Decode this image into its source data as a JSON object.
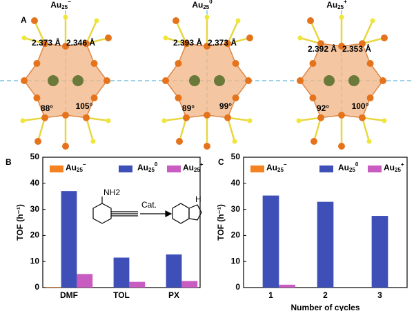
{
  "panel_a": {
    "label": "A",
    "clusters": [
      {
        "title": "Au25−",
        "distances": [
          "2.373 Å",
          "2.346 Å"
        ],
        "angles": [
          "88°",
          "105°"
        ]
      },
      {
        "title": "Au250",
        "distances": [
          "2.393 Å",
          "2.373 Å"
        ],
        "angles": [
          "89°",
          "99°"
        ]
      },
      {
        "title": "Au25+",
        "distances": [
          "2.392 Å",
          "2.353 Å"
        ],
        "angles": [
          "92°",
          "100°"
        ]
      }
    ]
  },
  "chart_data": [
    {
      "type": "bar",
      "label": "B",
      "categories": [
        "DMF",
        "TOL",
        "PX"
      ],
      "ylabel": "TOF (h⁻¹)",
      "ylim": [
        0,
        50
      ],
      "yticks": [
        0,
        10,
        20,
        30,
        40,
        50
      ],
      "annotations": [
        "NH2",
        "Cat.",
        "H"
      ],
      "series": [
        {
          "name": "Au25−",
          "color": "#f58220",
          "values": [
            0.2,
            0,
            0
          ]
        },
        {
          "name": "Au250",
          "color": "#3f4fb8",
          "values": [
            37,
            11.5,
            12.7
          ]
        },
        {
          "name": "Au25+",
          "color": "#c95cc0",
          "values": [
            5.2,
            2.2,
            2.5
          ]
        }
      ]
    },
    {
      "type": "bar",
      "label": "C",
      "categories": [
        "1",
        "2",
        "3"
      ],
      "xlabel": "Number of cycles",
      "ylabel": "TOF (h⁻¹)",
      "ylim": [
        0,
        50
      ],
      "yticks": [
        0,
        10,
        20,
        30,
        40,
        50
      ],
      "series": [
        {
          "name": "Au25−",
          "color": "#f58220",
          "values": [
            0,
            0,
            0
          ]
        },
        {
          "name": "Au250",
          "color": "#3f4fb8",
          "values": [
            35.3,
            32.9,
            27.5
          ]
        },
        {
          "name": "Au25+",
          "color": "#c95cc0",
          "values": [
            1.1,
            0,
            0
          ]
        }
      ]
    }
  ]
}
